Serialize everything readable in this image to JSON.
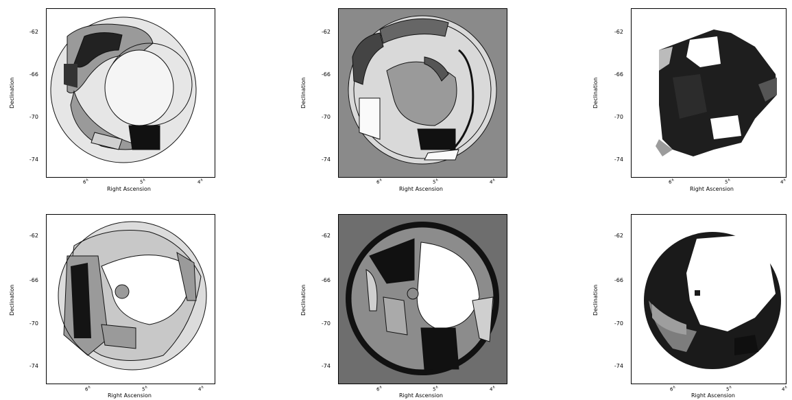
{
  "figure": {
    "xlabel": "Right Ascension",
    "ylabel": "Declination",
    "yticks": [
      "-62",
      "-66",
      "-70",
      "-74"
    ],
    "xticks": [
      {
        "h": "6",
        "sup": "h"
      },
      {
        "h": "5",
        "sup": "h"
      },
      {
        "h": "4",
        "sup": "h"
      }
    ],
    "panels": [
      {
        "id": "top-left",
        "style": "rings-light-bg"
      },
      {
        "id": "top-middle",
        "style": "rings-grey-bg"
      },
      {
        "id": "top-right",
        "style": "blocky-dark"
      },
      {
        "id": "bottom-left",
        "style": "rings-light-bg"
      },
      {
        "id": "bottom-middle",
        "style": "rings-dark-bg"
      },
      {
        "id": "bottom-right",
        "style": "blocky-dark"
      }
    ],
    "colors": {
      "frame": "#000000",
      "ink": "#111111",
      "mid_grey": "#8a8a8a",
      "light_grey": "#bdbdbd",
      "paper": "#ffffff"
    }
  }
}
